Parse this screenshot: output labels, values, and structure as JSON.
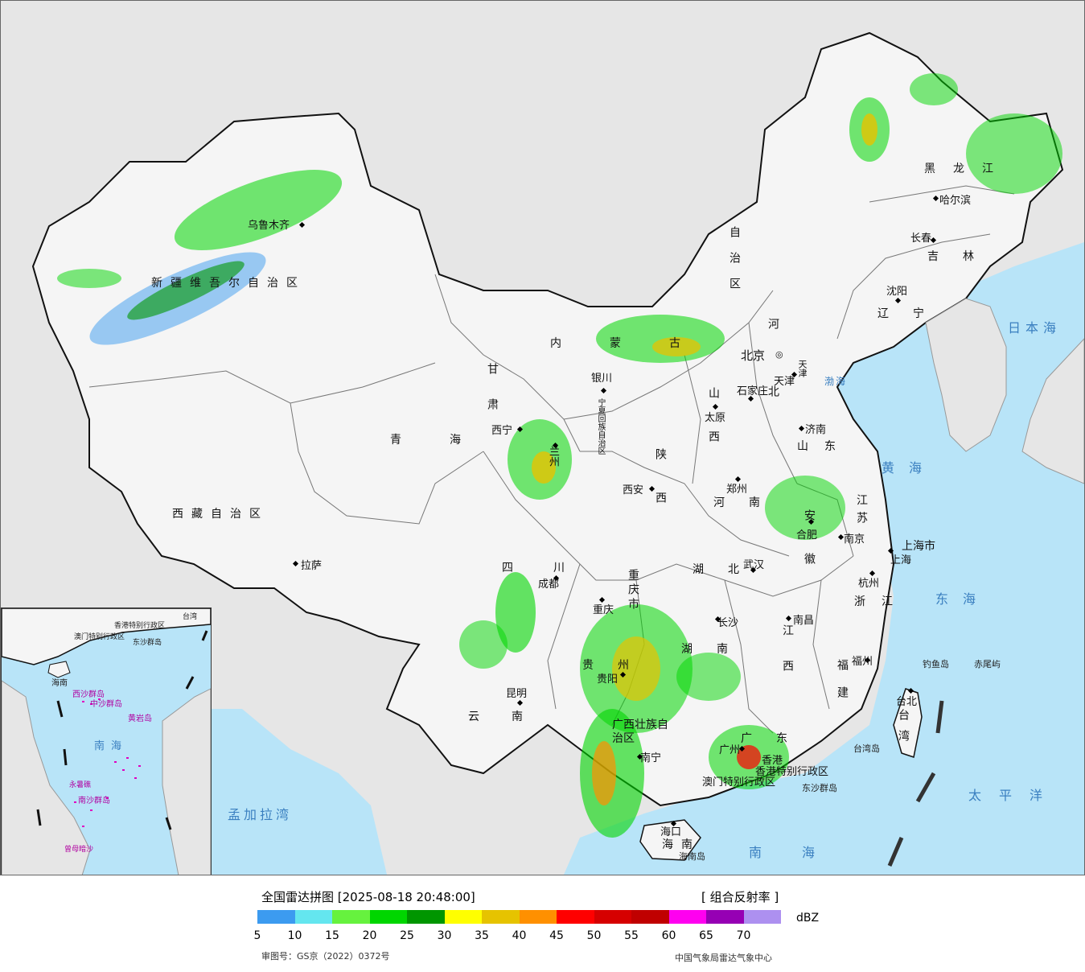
{
  "legend": {
    "title": "全国雷达拼图 [2025-08-18 20:48:00]",
    "product": "[ 组合反射率 ]",
    "unit": "dBZ",
    "ticks": [
      "5",
      "10",
      "15",
      "20",
      "25",
      "30",
      "35",
      "40",
      "45",
      "50",
      "55",
      "60",
      "65",
      "70"
    ],
    "colors": [
      "#3c9bf0",
      "#64e6ef",
      "#66f23e",
      "#00d600",
      "#009600",
      "#ffff00",
      "#e6c300",
      "#ff9000",
      "#ff0000",
      "#d60000",
      "#c00000",
      "#ff00f0",
      "#9600b4",
      "#ad90f0"
    ],
    "review_number": "审图号：GS京（2022）0372号",
    "credit": "中国气象局雷达气象中心"
  },
  "map": {
    "land_color": "#f5f5f5",
    "sea_color": "#b8e4f8",
    "outside_color": "#e6e6e6",
    "provinces": [
      {
        "name": "新疆维吾尔自治区"
      },
      {
        "name": "西藏自治区"
      },
      {
        "name": "青海"
      },
      {
        "name": "甘肃"
      },
      {
        "name": "内蒙古"
      },
      {
        "name": "自治区"
      },
      {
        "name": "黑龙江"
      },
      {
        "name": "吉林"
      },
      {
        "name": "辽宁"
      },
      {
        "name": "河北"
      },
      {
        "name": "山西"
      },
      {
        "name": "陕西"
      },
      {
        "name": "河南"
      },
      {
        "name": "山东"
      },
      {
        "name": "江苏"
      },
      {
        "name": "安徽"
      },
      {
        "name": "湖北"
      },
      {
        "name": "四川"
      },
      {
        "name": "重庆市"
      },
      {
        "name": "湖南"
      },
      {
        "name": "江西"
      },
      {
        "name": "浙江"
      },
      {
        "name": "福建"
      },
      {
        "name": "贵州"
      },
      {
        "name": "云南"
      },
      {
        "name": "广西壮族自治区"
      },
      {
        "name": "广东"
      },
      {
        "name": "海南"
      },
      {
        "name": "台湾"
      },
      {
        "name": "上海市"
      },
      {
        "name": "天津"
      },
      {
        "name": "宁夏回族自治区"
      },
      {
        "name": "香港特别行政区"
      },
      {
        "name": "澳门特别行政区"
      }
    ],
    "cities": [
      {
        "name": "乌鲁木齐"
      },
      {
        "name": "拉萨"
      },
      {
        "name": "西宁"
      },
      {
        "name": "兰州"
      },
      {
        "name": "银川"
      },
      {
        "name": "北京"
      },
      {
        "name": "天津"
      },
      {
        "name": "石家庄"
      },
      {
        "name": "太原"
      },
      {
        "name": "济南"
      },
      {
        "name": "郑州"
      },
      {
        "name": "西安"
      },
      {
        "name": "成都"
      },
      {
        "name": "重庆"
      },
      {
        "name": "武汉"
      },
      {
        "name": "合肥"
      },
      {
        "name": "南京"
      },
      {
        "name": "上海"
      },
      {
        "name": "杭州"
      },
      {
        "name": "长沙"
      },
      {
        "name": "南昌"
      },
      {
        "name": "福州"
      },
      {
        "name": "台北"
      },
      {
        "name": "昆明"
      },
      {
        "name": "贵阳"
      },
      {
        "name": "南宁"
      },
      {
        "name": "广州"
      },
      {
        "name": "香港"
      },
      {
        "name": "海口"
      },
      {
        "name": "沈阳"
      },
      {
        "name": "长春"
      },
      {
        "name": "哈尔滨"
      }
    ],
    "seas": [
      {
        "name": "日本海"
      },
      {
        "name": "黄海"
      },
      {
        "name": "东海"
      },
      {
        "name": "太平洋"
      },
      {
        "name": "南海"
      },
      {
        "name": "孟加拉湾"
      },
      {
        "name": "渤海"
      }
    ],
    "islands": [
      {
        "name": "钓鱼岛"
      },
      {
        "name": "赤尾屿"
      },
      {
        "name": "台湾岛"
      },
      {
        "name": "东沙群岛"
      },
      {
        "name": "海南岛"
      }
    ],
    "inset": {
      "labels": [
        "海南",
        "南海",
        "西沙群岛",
        "中沙群岛",
        "南沙群岛",
        "黄岩岛",
        "永暑礁",
        "曾母暗沙",
        "东沙群岛",
        "台湾",
        "香港特别行政区",
        "澳门特别行政区"
      ]
    }
  }
}
